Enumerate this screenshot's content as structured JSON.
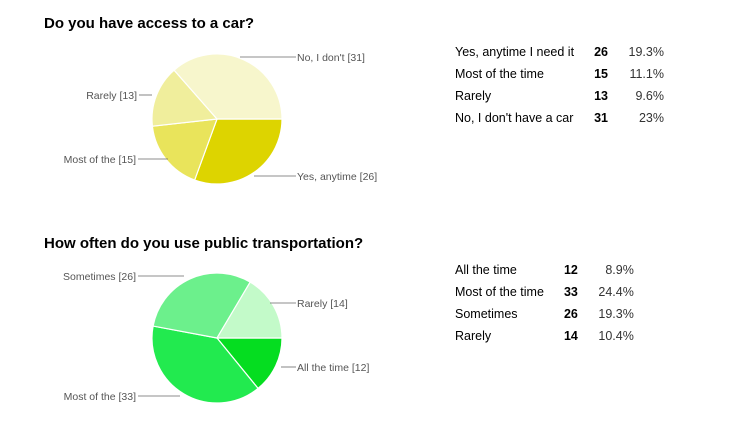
{
  "chart_data": [
    {
      "type": "pie",
      "title": "Do you have access to a car?",
      "categories": [
        "Yes, anytime I need it",
        "Most of the time",
        "Rarely",
        "No, I don't have a car"
      ],
      "values": [
        26,
        15,
        13,
        31
      ],
      "percents": [
        "19.3%",
        "11.1%",
        "9.6%",
        "23%"
      ],
      "slice_labels": [
        "Yes, anytime [26]",
        "Most of the  [15]",
        "Rarely [13]",
        "No, I don't  [31]"
      ],
      "colors": [
        "#DDD400",
        "#E9E45B",
        "#F0EE9C",
        "#F7F6CC"
      ]
    },
    {
      "type": "pie",
      "title": "How often do you use public transportation?",
      "categories": [
        "All the time",
        "Most of the time",
        "Sometimes",
        "Rarely"
      ],
      "values": [
        12,
        33,
        26,
        14
      ],
      "percents": [
        "8.9%",
        "24.4%",
        "19.3%",
        "10.4%"
      ],
      "slice_labels": [
        "All the time [12]",
        "Most of the  [33]",
        "Sometimes [26]",
        "Rarely [14]"
      ],
      "colors": [
        "#05DD20",
        "#22EA4F",
        "#6CF08C",
        "#C3FAC9"
      ]
    }
  ]
}
